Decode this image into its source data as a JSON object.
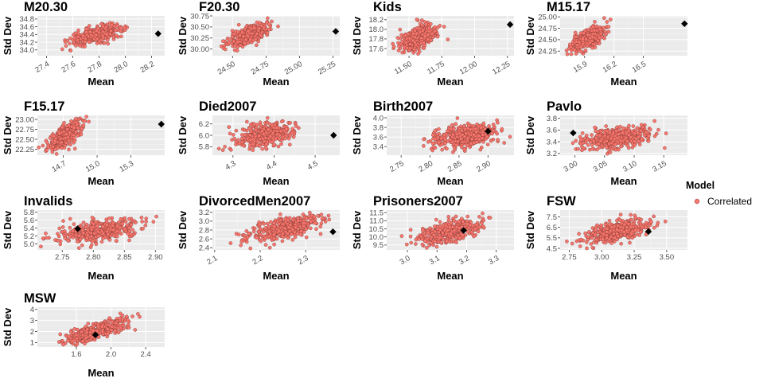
{
  "legend": {
    "title": "Model",
    "items": [
      {
        "label": "Correlated",
        "color": "#F8766D"
      }
    ]
  },
  "colors": {
    "panel_bg": "#EBEBEB",
    "grid_major": "#FFFFFF",
    "grid_minor": "#F5F5F5",
    "point_fill": "#F8766D",
    "point_edge": "#6E2F2A",
    "observed": "#000000"
  },
  "chart_data": [
    {
      "type": "scatter",
      "title": "M20.30",
      "xlabel": "Mean",
      "ylabel": "Std Dev",
      "xlim": [
        27.33,
        28.3
      ],
      "ylim": [
        33.85,
        34.88
      ],
      "xticks": [
        "27.4",
        "27.6",
        "27.8",
        "28.0",
        "28.2"
      ],
      "yticks": [
        "34.0",
        "34.2",
        "34.4",
        "34.6",
        "34.8"
      ],
      "x_tilt": true,
      "cloud": {
        "cx": 27.78,
        "cy": 34.4,
        "sx": 0.1,
        "sy": 0.12,
        "r": 0.6,
        "n": 380
      },
      "observed": {
        "x": 28.25,
        "y": 34.42
      }
    },
    {
      "type": "scatter",
      "title": "F20.30",
      "xlabel": "Mean",
      "ylabel": "Std Dev",
      "xlim": [
        24.35,
        25.3
      ],
      "ylim": [
        29.85,
        30.75
      ],
      "xticks": [
        "24.50",
        "24.75",
        "25.00",
        "25.25"
      ],
      "yticks": [
        "30.00",
        "30.25",
        "30.50",
        "30.75"
      ],
      "x_tilt": true,
      "cloud": {
        "cx": 24.62,
        "cy": 30.32,
        "sx": 0.07,
        "sy": 0.12,
        "r": 0.6,
        "n": 380
      },
      "observed": {
        "x": 25.27,
        "y": 30.4
      }
    },
    {
      "type": "scatter",
      "title": "Kids",
      "xlabel": "Mean",
      "ylabel": "Std Dev",
      "xlim": [
        11.33,
        12.3
      ],
      "ylim": [
        17.45,
        18.28
      ],
      "xticks": [
        "11.50",
        "11.75",
        "12.00",
        "12.25"
      ],
      "yticks": [
        "17.6",
        "17.8",
        "18.0",
        "18.2"
      ],
      "x_tilt": true,
      "cloud": {
        "cx": 11.57,
        "cy": 17.82,
        "sx": 0.07,
        "sy": 0.15,
        "r": 0.55,
        "n": 380
      },
      "observed": {
        "x": 12.27,
        "y": 18.1
      }
    },
    {
      "type": "scatter",
      "title": "M15.17",
      "xlabel": "Mean",
      "ylabel": "Std Dev",
      "xlim": [
        15.65,
        16.95
      ],
      "ylim": [
        24.15,
        25.02
      ],
      "xticks": [
        "15.9",
        "16.2",
        "16.5"
      ],
      "yticks": [
        "24.25",
        "24.50",
        "24.75",
        "25.00"
      ],
      "x_tilt": true,
      "cloud": {
        "cx": 15.93,
        "cy": 24.52,
        "sx": 0.08,
        "sy": 0.13,
        "r": 0.6,
        "n": 380
      },
      "observed": {
        "x": 16.92,
        "y": 24.85
      }
    },
    {
      "type": "scatter",
      "title": "F15.17",
      "xlabel": "Mean",
      "ylabel": "Std Dev",
      "xlim": [
        14.47,
        15.6
      ],
      "ylim": [
        22.1,
        23.1
      ],
      "xticks": [
        "14.7",
        "15.0",
        "15.3"
      ],
      "yticks": [
        "22.25",
        "22.50",
        "22.75",
        "23.00"
      ],
      "x_tilt": true,
      "cloud": {
        "cx": 14.72,
        "cy": 22.6,
        "sx": 0.07,
        "sy": 0.17,
        "r": 0.6,
        "n": 380
      },
      "observed": {
        "x": 15.57,
        "y": 22.88
      }
    },
    {
      "type": "scatter",
      "title": "Died2007",
      "xlabel": "Mean",
      "ylabel": "Std Dev",
      "xlim": [
        4.25,
        4.56
      ],
      "ylim": [
        5.65,
        6.35
      ],
      "xticks": [
        "4.3",
        "4.4",
        "4.5"
      ],
      "yticks": [
        "5.8",
        "6.0",
        "6.2"
      ],
      "x_tilt": true,
      "cloud": {
        "cx": 4.38,
        "cy": 6.02,
        "sx": 0.035,
        "sy": 0.11,
        "r": 0.45,
        "n": 400
      },
      "observed": {
        "x": 4.545,
        "y": 6.0
      }
    },
    {
      "type": "scatter",
      "title": "Birth2007",
      "xlabel": "Mean",
      "ylabel": "Std Dev",
      "xlim": [
        2.725,
        2.945
      ],
      "ylim": [
        3.22,
        4.05
      ],
      "xticks": [
        "2.75",
        "2.80",
        "2.85",
        "2.90"
      ],
      "yticks": [
        "3.4",
        "3.6",
        "3.8",
        "4.0"
      ],
      "x_tilt": true,
      "cloud": {
        "cx": 2.86,
        "cy": 3.62,
        "sx": 0.028,
        "sy": 0.12,
        "r": 0.35,
        "n": 420
      },
      "observed": {
        "x": 2.9,
        "y": 3.72
      }
    },
    {
      "type": "scatter",
      "title": "Pavlo",
      "xlabel": "Mean",
      "ylabel": "Std Dev",
      "xlim": [
        2.975,
        3.19
      ],
      "ylim": [
        3.17,
        3.85
      ],
      "xticks": [
        "3.00",
        "3.05",
        "3.10",
        "3.15"
      ],
      "yticks": [
        "3.2",
        "3.4",
        "3.6",
        "3.8"
      ],
      "x_tilt": true,
      "cloud": {
        "cx": 3.07,
        "cy": 3.47,
        "sx": 0.03,
        "sy": 0.1,
        "r": 0.4,
        "n": 420
      },
      "observed": {
        "x": 2.997,
        "y": 3.55
      }
    },
    {
      "type": "scatter",
      "title": "Invalids",
      "xlabel": "Mean",
      "ylabel": "Std Dev",
      "xlim": [
        2.71,
        2.915
      ],
      "ylim": [
        4.85,
        5.85
      ],
      "xticks": [
        "2.75",
        "2.80",
        "2.85",
        "2.90"
      ],
      "yticks": [
        "5.0",
        "5.2",
        "5.4",
        "5.6",
        "5.8"
      ],
      "x_tilt": false,
      "cloud": {
        "cx": 2.81,
        "cy": 5.33,
        "sx": 0.032,
        "sy": 0.14,
        "r": 0.45,
        "n": 420
      },
      "observed": {
        "x": 2.775,
        "y": 5.38
      }
    },
    {
      "type": "scatter",
      "title": "DivorcedMen2007",
      "xlabel": "Mean",
      "ylabel": "Std Dev",
      "xlim": [
        2.095,
        2.375
      ],
      "ylim": [
        2.35,
        3.25
      ],
      "xticks": [
        "2.1",
        "2.2",
        "2.3"
      ],
      "yticks": [
        "2.4",
        "2.6",
        "2.8",
        "3.0",
        "3.2"
      ],
      "x_tilt": true,
      "cloud": {
        "cx": 2.25,
        "cy": 2.82,
        "sx": 0.04,
        "sy": 0.15,
        "r": 0.6,
        "n": 420
      },
      "observed": {
        "x": 2.36,
        "y": 2.76
      }
    },
    {
      "type": "scatter",
      "title": "Prisoners2007",
      "xlabel": "Mean",
      "ylabel": "Std Dev",
      "xlim": [
        2.93,
        3.36
      ],
      "ylim": [
        9.2,
        11.65
      ],
      "xticks": [
        "3.0",
        "3.1",
        "3.2",
        "3.3"
      ],
      "yticks": [
        "9.5",
        "10.0",
        "10.5",
        "11.0",
        "11.5"
      ],
      "x_tilt": true,
      "cloud": {
        "cx": 3.14,
        "cy": 10.3,
        "sx": 0.05,
        "sy": 0.38,
        "r": 0.55,
        "n": 400
      },
      "observed": {
        "x": 3.19,
        "y": 10.4
      }
    },
    {
      "type": "scatter",
      "title": "FSW",
      "xlabel": "Mean",
      "ylabel": "Std Dev",
      "xlim": [
        2.68,
        3.66
      ],
      "ylim": [
        4.35,
        8.15
      ],
      "xticks": [
        "2.75",
        "3.00",
        "3.25",
        "3.50"
      ],
      "yticks": [
        "4.5",
        "5.5",
        "6.5",
        "7.5"
      ],
      "x_tilt": false,
      "cloud": {
        "cx": 3.1,
        "cy": 6.1,
        "sx": 0.12,
        "sy": 0.55,
        "r": 0.55,
        "n": 400
      },
      "observed": {
        "x": 3.36,
        "y": 6.1
      }
    },
    {
      "type": "scatter",
      "title": "MSW",
      "xlabel": "Mean",
      "ylabel": "Std Dev",
      "xlim": [
        1.15,
        2.62
      ],
      "ylim": [
        0.6,
        4.2
      ],
      "xticks": [
        "1.6",
        "2.0",
        "2.4"
      ],
      "yticks": [
        "1",
        "2",
        "3",
        "4"
      ],
      "x_tilt": false,
      "cloud": {
        "cx": 1.82,
        "cy": 2.05,
        "sx": 0.19,
        "sy": 0.55,
        "r": 0.78,
        "n": 380
      },
      "observed": {
        "x": 1.82,
        "y": 1.7
      }
    }
  ]
}
